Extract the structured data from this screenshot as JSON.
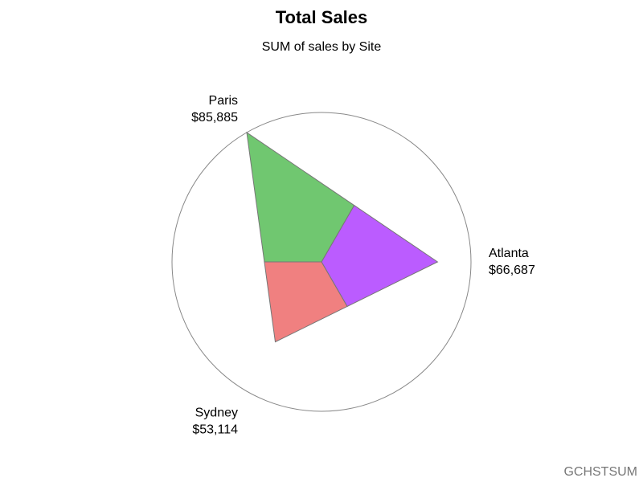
{
  "chart_data": {
    "type": "star",
    "title": "Total Sales",
    "subtitle": "SUM of sales by Site",
    "categories": [
      "Atlanta",
      "Paris",
      "Sydney"
    ],
    "values": [
      66687,
      85885,
      53114
    ],
    "value_labels": [
      "$66,687",
      "$85,885",
      "$53,114"
    ],
    "colors": [
      "#bb5cff",
      "#70c770",
      "#f08080"
    ],
    "footnote": "GCHSTSUM"
  }
}
